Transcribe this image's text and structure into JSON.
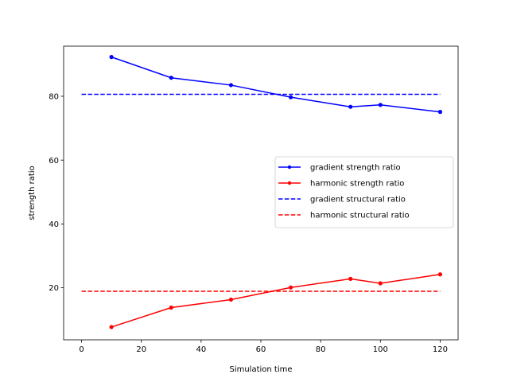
{
  "chart_data": {
    "type": "line",
    "title": "",
    "xlabel": "Simulation time",
    "ylabel": "strength ratio",
    "xlim": [
      -6,
      126
    ],
    "ylim": [
      3.7,
      95.7
    ],
    "xticks": [
      0,
      20,
      40,
      60,
      80,
      100,
      120
    ],
    "yticks": [
      20,
      40,
      60,
      80
    ],
    "grid": false,
    "legend_position": "center-right",
    "series": [
      {
        "name": "gradient strength ratio",
        "color": "#0000ff",
        "style": "solid",
        "marker": "dot",
        "x": [
          10,
          30,
          50,
          70,
          90,
          100,
          120
        ],
        "y": [
          92.3,
          85.8,
          83.5,
          79.7,
          76.7,
          77.3,
          75.1
        ]
      },
      {
        "name": "harmonic strength ratio",
        "color": "#ff0000",
        "style": "solid",
        "marker": "dot",
        "x": [
          10,
          30,
          50,
          70,
          90,
          100,
          120
        ],
        "y": [
          7.7,
          13.8,
          16.3,
          20.1,
          22.8,
          21.4,
          24.2
        ]
      },
      {
        "name": "gradient structural ratio",
        "color": "#0000ff",
        "style": "dashed",
        "marker": "none",
        "x": [
          0,
          120
        ],
        "y": [
          80.6,
          80.6
        ]
      },
      {
        "name": "harmonic structural ratio",
        "color": "#ff0000",
        "style": "dashed",
        "marker": "none",
        "x": [
          0,
          120
        ],
        "y": [
          18.9,
          18.9
        ]
      }
    ]
  }
}
